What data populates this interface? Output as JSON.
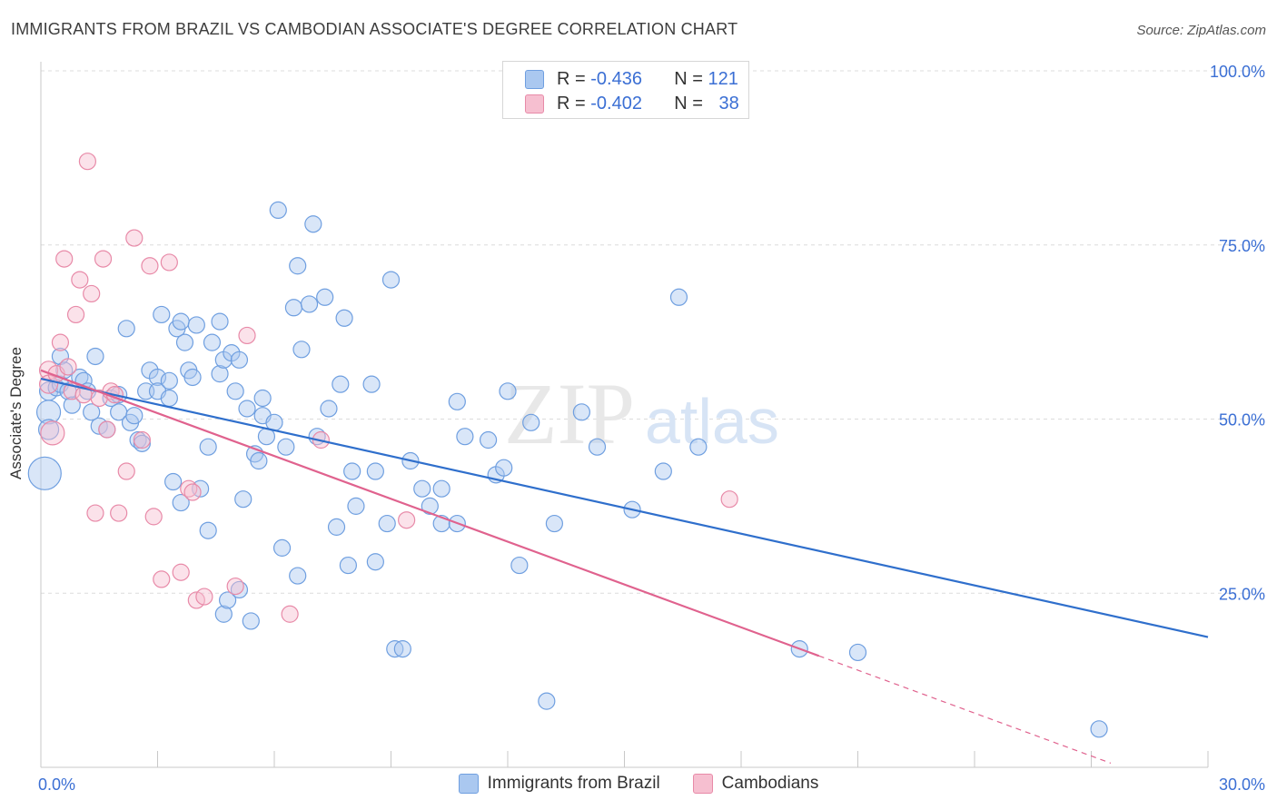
{
  "title": "IMMIGRANTS FROM BRAZIL VS CAMBODIAN ASSOCIATE'S DEGREE CORRELATION CHART",
  "source": "Source: ZipAtlas.com",
  "watermark": {
    "zip": "ZIP",
    "atlas": "atlas"
  },
  "legend": {
    "r_label": "R =",
    "n_label": "N =",
    "items": [
      {
        "r": "-0.436",
        "n": "121",
        "fill": "#aac8f0",
        "stroke": "#6f9fe0"
      },
      {
        "r": "-0.402",
        "n": "38",
        "fill": "#f6bfd0",
        "stroke": "#e88aa8"
      }
    ]
  },
  "bottom_legend": [
    "Immigrants from Brazil",
    "Cambodians"
  ],
  "chart_data": {
    "type": "scatter",
    "xlabel": "",
    "ylabel": "Associate's Degree",
    "xlim": [
      0,
      30
    ],
    "ylim": [
      0,
      100
    ],
    "x_tick_labels": [
      {
        "value": 0,
        "label": "0.0%"
      },
      {
        "value": 30,
        "label": "30.0%"
      }
    ],
    "y_tick_labels": [
      {
        "value": 25,
        "label": "25.0%"
      },
      {
        "value": 50,
        "label": "50.0%"
      },
      {
        "value": 75,
        "label": "75.0%"
      },
      {
        "value": 100,
        "label": "100.0%"
      }
    ],
    "grid": true,
    "series": [
      {
        "name": "Immigrants from Brazil",
        "color": "#6f9fe0",
        "fill": "#aac8f0",
        "line_color": "#2f6fcc",
        "trend": {
          "x0": 0,
          "y0": 55.8,
          "x1": 30,
          "y1": 18.7
        },
        "points": [
          [
            0.2,
            54.0,
            10
          ],
          [
            0.2,
            51.0,
            13
          ],
          [
            0.2,
            48.5,
            11
          ],
          [
            0.1,
            42.2,
            18
          ],
          [
            0.4,
            54.5,
            9
          ],
          [
            0.5,
            55.0,
            9
          ],
          [
            0.5,
            59.0,
            9
          ],
          [
            0.6,
            57.0,
            9
          ],
          [
            0.7,
            54.0,
            9
          ],
          [
            0.8,
            52.0,
            9
          ],
          [
            1.0,
            56.0,
            9
          ],
          [
            1.1,
            55.5,
            9
          ],
          [
            1.2,
            54.0,
            9
          ],
          [
            1.3,
            51.0,
            9
          ],
          [
            1.4,
            59.0,
            9
          ],
          [
            1.5,
            49.0,
            9
          ],
          [
            1.7,
            48.5,
            9
          ],
          [
            1.8,
            53.0,
            9
          ],
          [
            2.0,
            53.5,
            9
          ],
          [
            2.0,
            51.0,
            9
          ],
          [
            2.2,
            63.0,
            9
          ],
          [
            2.3,
            49.5,
            9
          ],
          [
            2.4,
            50.5,
            9
          ],
          [
            2.5,
            47.0,
            9
          ],
          [
            2.6,
            46.5,
            9
          ],
          [
            2.7,
            54.0,
            9
          ],
          [
            2.8,
            57.0,
            9
          ],
          [
            3.0,
            56.0,
            9
          ],
          [
            3.0,
            54.0,
            9
          ],
          [
            3.1,
            65.0,
            9
          ],
          [
            3.3,
            55.5,
            9
          ],
          [
            3.3,
            53.0,
            9
          ],
          [
            3.5,
            63.0,
            9
          ],
          [
            3.6,
            64.0,
            9
          ],
          [
            3.7,
            61.0,
            9
          ],
          [
            3.8,
            57.0,
            9
          ],
          [
            3.9,
            56.0,
            9
          ],
          [
            4.0,
            63.5,
            9
          ],
          [
            4.1,
            40.0,
            9
          ],
          [
            4.3,
            46.0,
            9
          ],
          [
            4.4,
            61.0,
            9
          ],
          [
            4.6,
            64.0,
            9
          ],
          [
            4.6,
            56.5,
            9
          ],
          [
            4.7,
            58.5,
            9
          ],
          [
            4.9,
            59.5,
            9
          ],
          [
            5.0,
            54.0,
            9
          ],
          [
            5.1,
            58.5,
            9
          ],
          [
            5.2,
            38.5,
            9
          ],
          [
            5.3,
            51.5,
            9
          ],
          [
            5.5,
            45.0,
            9
          ],
          [
            5.6,
            44.0,
            9
          ],
          [
            5.7,
            53.0,
            9
          ],
          [
            5.7,
            50.5,
            9
          ],
          [
            5.8,
            47.5,
            9
          ],
          [
            6.0,
            49.5,
            9
          ],
          [
            6.1,
            80.0,
            9
          ],
          [
            6.3,
            46.0,
            9
          ],
          [
            6.5,
            66.0,
            9
          ],
          [
            6.6,
            72.0,
            9
          ],
          [
            6.7,
            60.0,
            9
          ],
          [
            6.9,
            66.5,
            9
          ],
          [
            7.0,
            78.0,
            9
          ],
          [
            7.1,
            47.5,
            9
          ],
          [
            7.3,
            67.5,
            9
          ],
          [
            7.4,
            51.5,
            9
          ],
          [
            7.7,
            55.0,
            9
          ],
          [
            7.8,
            64.5,
            9
          ],
          [
            8.0,
            42.5,
            9
          ],
          [
            8.1,
            37.5,
            9
          ],
          [
            8.5,
            55.0,
            9
          ],
          [
            8.6,
            42.5,
            9
          ],
          [
            8.9,
            35.0,
            9
          ],
          [
            9.0,
            70.0,
            9
          ],
          [
            9.1,
            17.0,
            9
          ],
          [
            9.5,
            44.0,
            9
          ],
          [
            9.8,
            40.0,
            9
          ],
          [
            10.0,
            37.5,
            9
          ],
          [
            10.3,
            35.0,
            9
          ],
          [
            10.7,
            52.5,
            9
          ],
          [
            10.9,
            47.5,
            9
          ],
          [
            11.5,
            47.0,
            9
          ],
          [
            11.7,
            42.0,
            9
          ],
          [
            11.9,
            43.0,
            9
          ],
          [
            12.0,
            54.0,
            9
          ],
          [
            12.3,
            29.0,
            9
          ],
          [
            12.6,
            49.5,
            9
          ],
          [
            13.0,
            9.5,
            9
          ],
          [
            13.2,
            35.0,
            9
          ],
          [
            13.9,
            51.0,
            9
          ],
          [
            14.3,
            46.0,
            9
          ],
          [
            15.2,
            37.0,
            9
          ],
          [
            16.0,
            42.5,
            9
          ],
          [
            16.4,
            67.5,
            9
          ],
          [
            16.9,
            46.0,
            9
          ],
          [
            19.5,
            17.0,
            9
          ],
          [
            21.0,
            16.5,
            9
          ],
          [
            27.2,
            5.5,
            9
          ],
          [
            4.7,
            22.0,
            9
          ],
          [
            4.8,
            24.0,
            9
          ],
          [
            5.1,
            25.5,
            9
          ],
          [
            5.4,
            21.0,
            9
          ],
          [
            6.6,
            27.5,
            9
          ],
          [
            6.2,
            31.5,
            9
          ],
          [
            7.6,
            34.5,
            9
          ],
          [
            7.9,
            29.0,
            9
          ],
          [
            8.6,
            29.5,
            9
          ],
          [
            9.3,
            17.0,
            9
          ],
          [
            10.3,
            40.0,
            9
          ],
          [
            10.7,
            35.0,
            9
          ],
          [
            4.3,
            34.0,
            9
          ],
          [
            3.6,
            38.0,
            9
          ],
          [
            3.4,
            41.0,
            9
          ]
        ]
      },
      {
        "name": "Cambodians",
        "color": "#e88aa8",
        "fill": "#f6bfd0",
        "line_color": "#e0628e",
        "trend": {
          "x0": 0,
          "y0": 57.0,
          "x1": 20.0,
          "y1": 16.0,
          "dash_x1": 27.5,
          "dash_y1": 0.6
        },
        "points": [
          [
            0.2,
            57.0,
            10
          ],
          [
            0.2,
            55.0,
            10
          ],
          [
            0.3,
            48.0,
            13
          ],
          [
            0.4,
            56.5,
            9
          ],
          [
            0.5,
            61.0,
            9
          ],
          [
            0.6,
            73.0,
            9
          ],
          [
            0.7,
            57.5,
            9
          ],
          [
            0.8,
            54.0,
            9
          ],
          [
            0.9,
            65.0,
            9
          ],
          [
            1.0,
            70.0,
            9
          ],
          [
            1.1,
            53.5,
            9
          ],
          [
            1.2,
            87.0,
            9
          ],
          [
            1.3,
            68.0,
            9
          ],
          [
            1.4,
            36.5,
            9
          ],
          [
            1.5,
            53.0,
            9
          ],
          [
            1.6,
            73.0,
            9
          ],
          [
            1.7,
            48.5,
            9
          ],
          [
            1.8,
            54.0,
            9
          ],
          [
            1.9,
            53.5,
            9
          ],
          [
            2.0,
            36.5,
            9
          ],
          [
            2.2,
            42.5,
            9
          ],
          [
            2.4,
            76.0,
            9
          ],
          [
            2.6,
            47.0,
            9
          ],
          [
            2.8,
            72.0,
            9
          ],
          [
            2.9,
            36.0,
            9
          ],
          [
            3.1,
            27.0,
            9
          ],
          [
            3.3,
            72.5,
            9
          ],
          [
            3.6,
            28.0,
            9
          ],
          [
            3.8,
            40.0,
            9
          ],
          [
            3.9,
            39.5,
            9
          ],
          [
            4.0,
            24.0,
            9
          ],
          [
            4.2,
            24.5,
            9
          ],
          [
            5.0,
            26.0,
            9
          ],
          [
            5.3,
            62.0,
            9
          ],
          [
            6.4,
            22.0,
            9
          ],
          [
            7.2,
            47.0,
            9
          ],
          [
            9.4,
            35.5,
            9
          ],
          [
            17.7,
            38.5,
            9
          ]
        ]
      }
    ]
  }
}
